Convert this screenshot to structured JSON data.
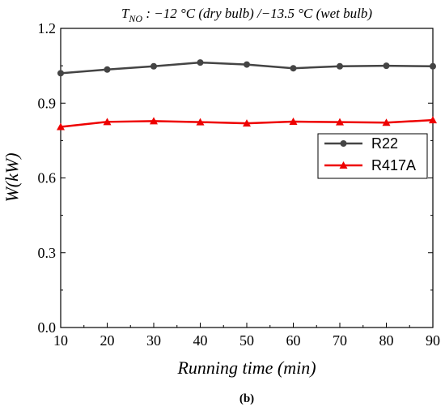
{
  "chart_data": {
    "type": "line",
    "title": {
      "subscript_main": "T",
      "subscript": "NO",
      "rest": " : −12 °C (dry bulb) /−13.5 °C (wet bulb)"
    },
    "xlabel": "Running time (min)",
    "ylabel": "W(kW)",
    "x": [
      10,
      20,
      30,
      40,
      50,
      60,
      70,
      80,
      90
    ],
    "xlim": [
      10,
      90
    ],
    "ylim": [
      0.0,
      1.2
    ],
    "x_ticks": [
      "10",
      "20",
      "30",
      "40",
      "50",
      "60",
      "70",
      "80",
      "90"
    ],
    "y_ticks": [
      "0.0",
      "0.3",
      "0.6",
      "0.9",
      "1.2"
    ],
    "grid": false,
    "legend_position": "right-middle",
    "series": [
      {
        "name": "R22",
        "color": "#444444",
        "marker": "circle",
        "values": [
          1.02,
          1.035,
          1.048,
          1.063,
          1.055,
          1.04,
          1.048,
          1.05,
          1.048
        ]
      },
      {
        "name": "R417A",
        "color": "#ee0000",
        "marker": "triangle",
        "values": [
          0.805,
          0.825,
          0.828,
          0.824,
          0.819,
          0.826,
          0.824,
          0.822,
          0.832
        ]
      }
    ],
    "caption": "(b)"
  }
}
